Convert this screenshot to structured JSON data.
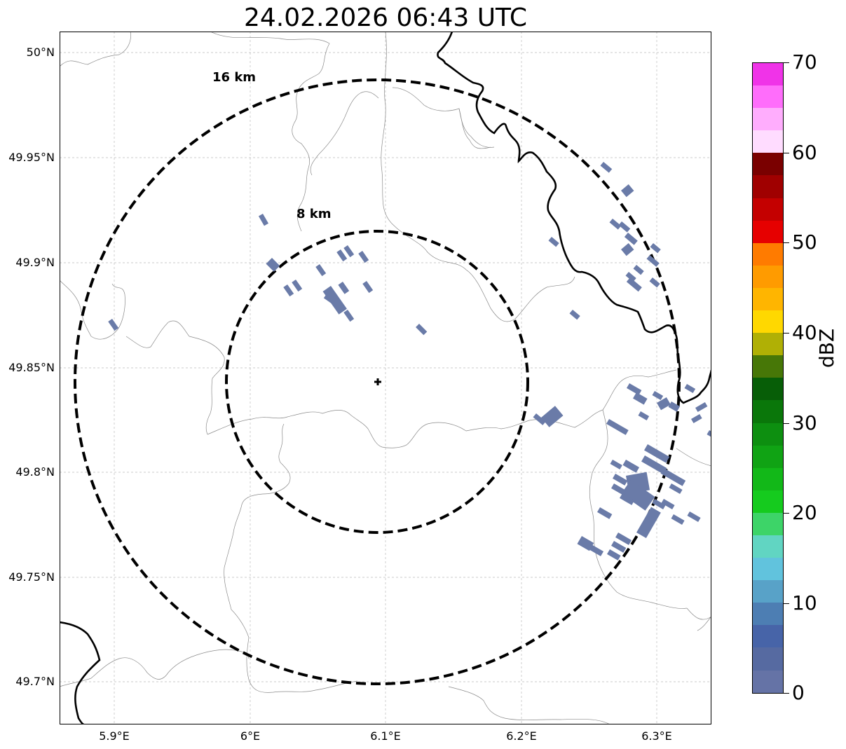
{
  "title": "24.02.2026 06:43 UTC",
  "lat_ticks": [
    "50°N",
    "49.95°N",
    "49.9°N",
    "49.85°N",
    "49.8°N",
    "49.75°N",
    "49.7°N"
  ],
  "lon_ticks": [
    "5.9°E",
    "6°E",
    "6.1°E",
    "6.2°E",
    "6.3°E"
  ],
  "ring_labels": [
    "16 km",
    "8 km"
  ],
  "colorbar": {
    "label": "dBZ",
    "ticks": [
      "70",
      "60",
      "50",
      "40",
      "30",
      "20",
      "10",
      "0"
    ],
    "colors_top_to_bottom": [
      "#f033e8",
      "#ff6dfb",
      "#ffadfd",
      "#ffdcff",
      "#7a0000",
      "#a00000",
      "#c40000",
      "#e60000",
      "#ff7b00",
      "#ff9b00",
      "#ffb500",
      "#ffd800",
      "#b0b005",
      "#477707",
      "#075e07",
      "#0a770a",
      "#0d8f10",
      "#10a314",
      "#12b818",
      "#15cb1e",
      "#3dd468",
      "#61d5c2",
      "#61c3dd",
      "#58a2c8",
      "#4d7eb3",
      "#4764a8",
      "#566aa1",
      "#6573a6"
    ]
  },
  "echo_color": "#6a7ba8"
}
